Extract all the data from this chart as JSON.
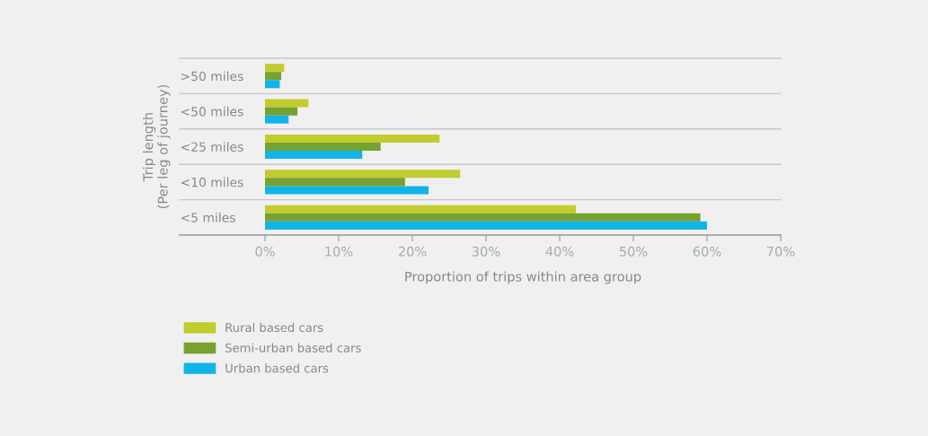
{
  "chart_data": {
    "type": "bar",
    "orientation": "horizontal",
    "xlabel": "Proportion of trips within area group",
    "ylabel": "Trip length\n(Per leg of journey)",
    "categories": [
      ">50 miles",
      "<50 miles",
      "<25 miles",
      "<10 miles",
      "<5 miles"
    ],
    "series": [
      {
        "name": "Rural based cars",
        "color": "#c2cc2e",
        "values": [
          2.6,
          5.9,
          23.7,
          26.5,
          42.2
        ]
      },
      {
        "name": "Semi-urban based cars",
        "color": "#76a22f",
        "values": [
          2.2,
          4.4,
          15.7,
          19.0,
          59.1
        ]
      },
      {
        "name": "Urban based cars",
        "color": "#12b4e8",
        "values": [
          2.0,
          3.2,
          13.2,
          22.2,
          60.0
        ]
      }
    ],
    "xlim": [
      0,
      70
    ],
    "xticks": [
      {
        "value": 0,
        "label": "0%"
      },
      {
        "value": 10,
        "label": "10%"
      },
      {
        "value": 20,
        "label": "20%"
      },
      {
        "value": 30,
        "label": "30%"
      },
      {
        "value": 40,
        "label": "40%"
      },
      {
        "value": 50,
        "label": "50%"
      },
      {
        "value": 60,
        "label": "60%"
      },
      {
        "value": 70,
        "label": "70%"
      }
    ],
    "grid": "y",
    "legend": "bottom left"
  }
}
